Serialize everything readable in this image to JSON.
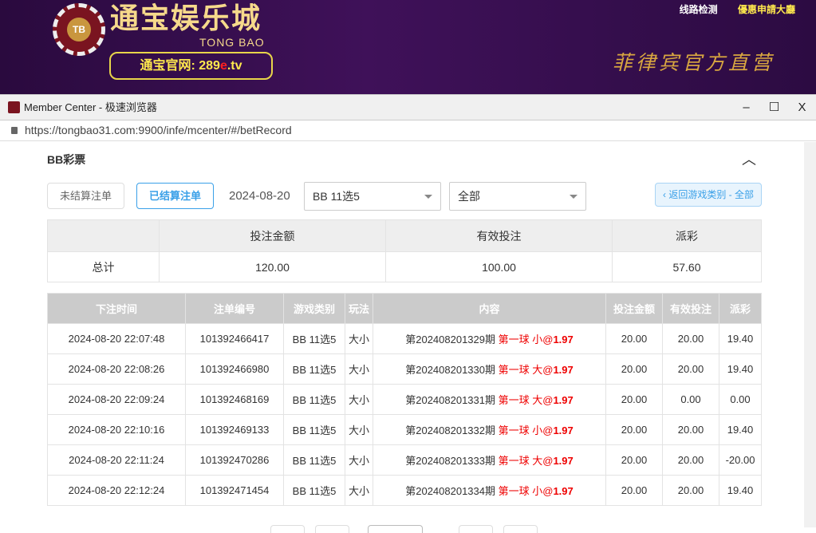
{
  "banner": {
    "logo_badge": "TB",
    "logo_title": "通宝娱乐城",
    "logo_subtitle": "TONG BAO",
    "site_label": "通宝官网: 289",
    "site_e": "e",
    "site_tld": ".tv",
    "links": [
      "线路检测",
      "優惠申請大廳"
    ],
    "slogan": "菲律宾官方直营",
    "link_colors": [
      "#ffffff",
      "#ffe94d"
    ]
  },
  "window": {
    "title": "Member Center - 极速浏览器",
    "url": "https://tongbao31.com:9900/infe/mcenter/#/betRecord",
    "minimize": "–",
    "maximize": "☐",
    "close": "X"
  },
  "section": {
    "title": "BB彩票"
  },
  "filters": {
    "unsettled": "未结算注单",
    "settled": "已结算注单",
    "date": "2024-08-20",
    "game": "BB 11选5",
    "type": "全部",
    "back": "‹ 返回游戏类别 - 全部"
  },
  "summary": {
    "headers": [
      "",
      "投注金额",
      "有效投注",
      "派彩"
    ],
    "row": [
      "总计",
      "120.00",
      "100.00",
      "57.60"
    ]
  },
  "table": {
    "headers": [
      "下注时间",
      "注单编号",
      "游戏类别",
      "玩法",
      "内容",
      "投注金额",
      "有效投注",
      "派彩"
    ],
    "rows": [
      {
        "time": "2024-08-20 22:07:48",
        "id": "101392466417",
        "game": "BB 11选5",
        "play": "大小",
        "period": "第202408201329期",
        "bet": "第一球 小@",
        "odds": "1.97",
        "amount": "20.00",
        "valid": "20.00",
        "payout": "19.40"
      },
      {
        "time": "2024-08-20 22:08:26",
        "id": "101392466980",
        "game": "BB 11选5",
        "play": "大小",
        "period": "第202408201330期",
        "bet": "第一球 大@",
        "odds": "1.97",
        "amount": "20.00",
        "valid": "20.00",
        "payout": "19.40"
      },
      {
        "time": "2024-08-20 22:09:24",
        "id": "101392468169",
        "game": "BB 11选5",
        "play": "大小",
        "period": "第202408201331期",
        "bet": "第一球 大@",
        "odds": "1.97",
        "amount": "20.00",
        "valid": "0.00",
        "payout": "0.00"
      },
      {
        "time": "2024-08-20 22:10:16",
        "id": "101392469133",
        "game": "BB 11选5",
        "play": "大小",
        "period": "第202408201332期",
        "bet": "第一球 小@",
        "odds": "1.97",
        "amount": "20.00",
        "valid": "20.00",
        "payout": "19.40"
      },
      {
        "time": "2024-08-20 22:11:24",
        "id": "101392470286",
        "game": "BB 11选5",
        "play": "大小",
        "period": "第202408201333期",
        "bet": "第一球 大@",
        "odds": "1.97",
        "amount": "20.00",
        "valid": "20.00",
        "payout": "-20.00"
      },
      {
        "time": "2024-08-20 22:12:24",
        "id": "101392471454",
        "game": "BB 11选5",
        "play": "大小",
        "period": "第202408201334期",
        "bet": "第一球 小@",
        "odds": "1.97",
        "amount": "20.00",
        "valid": "20.00",
        "payout": "19.40"
      }
    ]
  }
}
